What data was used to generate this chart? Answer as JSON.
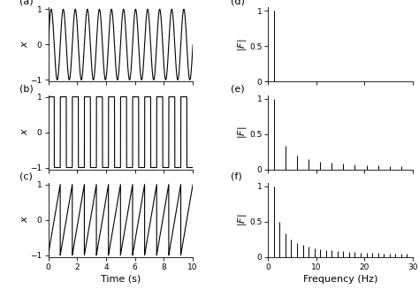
{
  "freq": 1.2,
  "duration": 10,
  "fs": 4000,
  "fft_max_freq": 30,
  "bgcolor": "#ffffff",
  "linecolor": "#000000",
  "linewidth": 0.8,
  "stem_linewidth": 0.7,
  "time_xlabel": "Time (s)",
  "time_ylabel": "x",
  "freq_xlabel": "Frequency (Hz)",
  "panel_labels_left": [
    "(a)",
    "(b)",
    "(c)"
  ],
  "panel_labels_right": [
    "(d)",
    "(e)",
    "(f)"
  ],
  "time_xlim": [
    0,
    10
  ],
  "time_ylim": [
    -1.05,
    1.05
  ],
  "time_yticks": [
    -1,
    0,
    1
  ],
  "time_xticks": [
    0,
    2,
    4,
    6,
    8,
    10
  ],
  "freq_xlim": [
    0,
    30
  ],
  "freq_ylim": [
    0,
    1.05
  ],
  "freq_yticks": [
    0,
    0.5,
    1
  ],
  "freq_xticks": [
    0,
    10,
    20,
    30
  ],
  "tick_labelsize": 6.5,
  "label_fontsize": 8,
  "panel_fontsize": 8
}
